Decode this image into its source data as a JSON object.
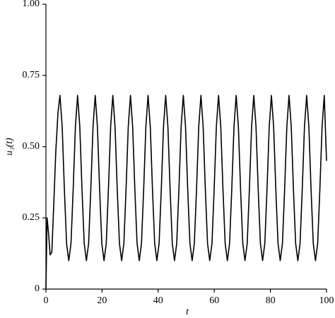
{
  "chart_data": {
    "type": "line",
    "xlabel": "t",
    "ylabel": "u₃(t)",
    "x": [
      0,
      0.4,
      0.9,
      1.5,
      2.1,
      2.8,
      3.5,
      4.3,
      5.0,
      5.79,
      6.57,
      7.36,
      8.14,
      8.93,
      9.71,
      10.5,
      11.28,
      12.07,
      12.85,
      13.64,
      14.42,
      15.21,
      15.99,
      16.78,
      17.56,
      18.35,
      19.13,
      19.92,
      20.7,
      21.49,
      22.27,
      23.06,
      23.84,
      24.63,
      25.41,
      26.2,
      26.98,
      27.77,
      28.55,
      29.34,
      30.12,
      30.91,
      31.69,
      32.48,
      33.26,
      34.05,
      34.83,
      35.62,
      36.4,
      37.19,
      37.97,
      38.76,
      39.54,
      40.33,
      41.11,
      41.9,
      42.68,
      43.47,
      44.25,
      45.04,
      45.82,
      46.61,
      47.39,
      48.18,
      48.96,
      49.75,
      50.53,
      51.32,
      52.1,
      52.89,
      53.67,
      54.46,
      55.24,
      56.03,
      56.81,
      57.6,
      58.38,
      59.17,
      59.95,
      60.74,
      61.52,
      62.31,
      63.09,
      63.88,
      64.66,
      65.45,
      66.23,
      67.02,
      67.8,
      68.59,
      69.37,
      70.16,
      70.94,
      71.73,
      72.51,
      73.3,
      74.08,
      74.87,
      75.65,
      76.44,
      77.22,
      78.01,
      78.79,
      79.58,
      80.36,
      81.15,
      81.93,
      82.72,
      83.5,
      84.29,
      85.07,
      85.86,
      86.64,
      87.43,
      88.21,
      89.0,
      89.78,
      90.57,
      91.35,
      92.14,
      92.92,
      93.71,
      94.49,
      95.28,
      96.06,
      96.85,
      97.63,
      98.42,
      99.2,
      100
    ],
    "series": [
      {
        "color": "#000000",
        "values": [
          0,
          0.25,
          0.2,
          0.12,
          0.13,
          0.3,
          0.48,
          0.62,
          0.68,
          0.57,
          0.35,
          0.16,
          0.1,
          0.16,
          0.35,
          0.57,
          0.68,
          0.57,
          0.35,
          0.16,
          0.1,
          0.16,
          0.35,
          0.57,
          0.68,
          0.57,
          0.35,
          0.16,
          0.1,
          0.16,
          0.35,
          0.57,
          0.68,
          0.57,
          0.35,
          0.16,
          0.1,
          0.16,
          0.35,
          0.57,
          0.68,
          0.57,
          0.35,
          0.16,
          0.1,
          0.16,
          0.35,
          0.57,
          0.68,
          0.57,
          0.35,
          0.16,
          0.1,
          0.16,
          0.35,
          0.57,
          0.68,
          0.57,
          0.35,
          0.16,
          0.1,
          0.16,
          0.35,
          0.57,
          0.68,
          0.57,
          0.35,
          0.16,
          0.1,
          0.16,
          0.35,
          0.57,
          0.68,
          0.57,
          0.35,
          0.16,
          0.1,
          0.16,
          0.35,
          0.57,
          0.68,
          0.57,
          0.35,
          0.16,
          0.1,
          0.16,
          0.35,
          0.57,
          0.68,
          0.57,
          0.35,
          0.16,
          0.1,
          0.16,
          0.35,
          0.57,
          0.68,
          0.57,
          0.35,
          0.16,
          0.1,
          0.16,
          0.35,
          0.57,
          0.68,
          0.57,
          0.35,
          0.16,
          0.1,
          0.16,
          0.35,
          0.57,
          0.68,
          0.57,
          0.35,
          0.16,
          0.1,
          0.16,
          0.35,
          0.57,
          0.68,
          0.57,
          0.35,
          0.16,
          0.1,
          0.16,
          0.35,
          0.57,
          0.68,
          0.45
        ]
      }
    ],
    "xlim": [
      0,
      100
    ],
    "xticks": [
      0,
      20,
      40,
      60,
      80,
      100
    ],
    "ylim": [
      0,
      1
    ],
    "yticks": [
      0,
      0.25,
      {
        "value": 0.5,
        "label": "0.50"
      },
      0.75,
      {
        "value": 1,
        "label": "1.00"
      }
    ],
    "grid": false
  }
}
